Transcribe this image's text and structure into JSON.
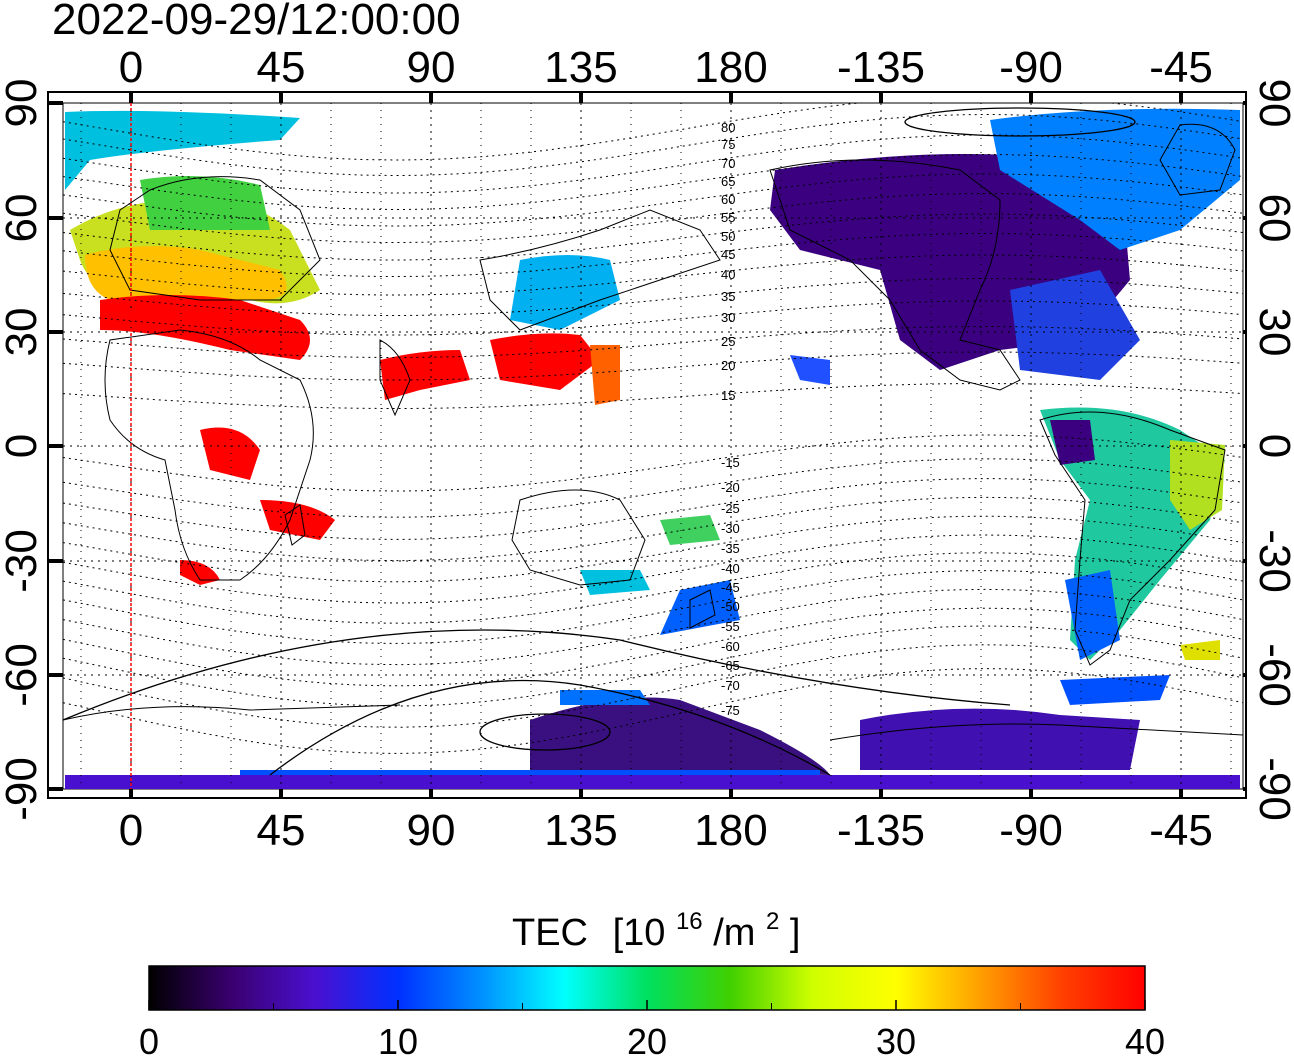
{
  "timestamp": "2022-09-29/12:00:00",
  "map": {
    "lon_ticks": [
      "0",
      "45",
      "90",
      "135",
      "180",
      "-135",
      "-90",
      "-45"
    ],
    "lat_ticks_left": [
      "90",
      "60",
      "30",
      "0",
      "-30",
      "-60",
      "-90"
    ],
    "lat_ticks_right": [
      "90",
      "60",
      "30",
      "0",
      "-30",
      "-60",
      "-90"
    ],
    "magnetic_lat_labels_north": [
      "80",
      "75",
      "70",
      "65",
      "60",
      "55",
      "50",
      "45",
      "40",
      "35",
      "30",
      "25",
      "20",
      "15"
    ],
    "magnetic_lat_labels_south": [
      "-15",
      "-20",
      "-25",
      "-30",
      "-35",
      "-40",
      "-45",
      "-50",
      "-55",
      "-60",
      "-65",
      "-70",
      "-75"
    ],
    "subsolar_meridian_color": "#ff0000"
  },
  "colorbar": {
    "label": "TEC",
    "unit_base": "[10",
    "unit_exp": "16",
    "unit_mid": "/m",
    "unit_exp2": "2",
    "unit_end": "]",
    "ticks": [
      "0",
      "10",
      "20",
      "30",
      "40"
    ],
    "min": 0,
    "max": 40,
    "colors": [
      "#000000",
      "#3a0070",
      "#4a10d0",
      "#0030ff",
      "#0090ff",
      "#00ffff",
      "#00e060",
      "#40d000",
      "#d0ff00",
      "#ffff00",
      "#ffa000",
      "#ff4000",
      "#ff0000"
    ]
  }
}
